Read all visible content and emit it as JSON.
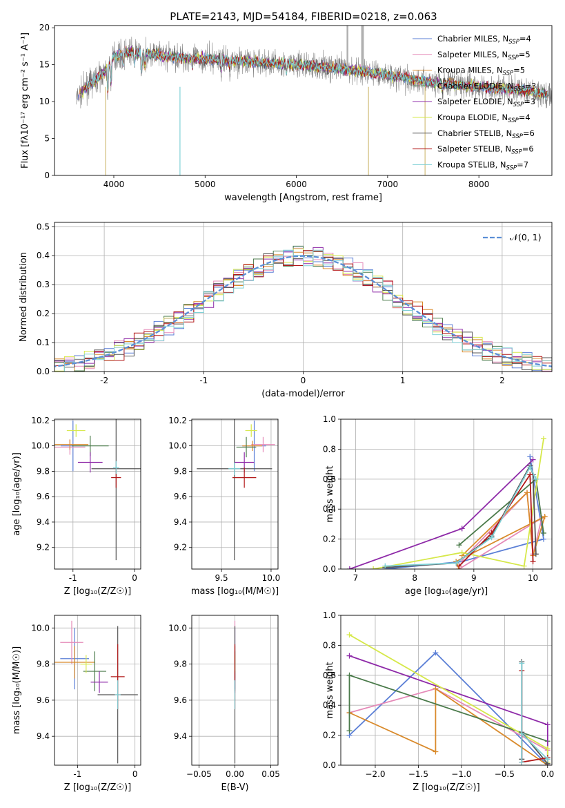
{
  "title": "PLATE=2143, MJD=54184, FIBERID=0218, z=0.063",
  "colors": {
    "chabrier_miles": "#5b7fd6",
    "salpeter_miles": "#e58ab8",
    "kroupa_miles": "#d98a2b",
    "chabrier_elodie": "#4a7a4a",
    "salpeter_elodie": "#8e2aa8",
    "kroupa_elodie": "#d6e84a",
    "chabrier_stelib": "#555555",
    "salpeter_stelib": "#b21818",
    "kroupa_stelib": "#7fd0d6",
    "data": "#808080",
    "masked": "#b0b0b0"
  },
  "chart_data": [
    {
      "type": "line",
      "name": "spectrum",
      "xlabel": "wavelength [Angstrom, rest frame]",
      "ylabel": "Flux [fλ10⁻¹⁷ erg cm⁻² s⁻¹ A⁻¹]",
      "xlim": [
        3350,
        8800
      ],
      "ylim": [
        0,
        20.3
      ],
      "xticks": [
        4000,
        5000,
        6000,
        7000,
        8000
      ],
      "yticks": [
        0,
        5,
        10,
        15,
        20
      ],
      "legend_position": "top-right",
      "legend": [
        {
          "label": "Chabrier MILES, N",
          "sub": "SSP",
          "tail": "=4",
          "color_key": "chabrier_miles"
        },
        {
          "label": "Salpeter MILES, N",
          "sub": "SSP",
          "tail": "=5",
          "color_key": "salpeter_miles"
        },
        {
          "label": "Kroupa MILES, N",
          "sub": "SSP",
          "tail": "=5",
          "color_key": "kroupa_miles"
        },
        {
          "label": "Chabrier ELODIE, N",
          "sub": "SSP",
          "tail": "=3",
          "color_key": "chabrier_elodie"
        },
        {
          "label": "Salpeter ELODIE, N",
          "sub": "SSP",
          "tail": "=3",
          "color_key": "salpeter_elodie"
        },
        {
          "label": "Kroupa ELODIE, N",
          "sub": "SSP",
          "tail": "=4",
          "color_key": "kroupa_elodie"
        },
        {
          "label": "Chabrier STELIB, N",
          "sub": "SSP",
          "tail": "=6",
          "color_key": "chabrier_stelib"
        },
        {
          "label": "Salpeter STELIB, N",
          "sub": "SSP",
          "tail": "=6",
          "color_key": "salpeter_stelib"
        },
        {
          "label": "Kroupa STELIB, N",
          "sub": "SSP",
          "tail": "=7",
          "color_key": "kroupa_stelib"
        }
      ],
      "continuum": {
        "x": [
          3600,
          3700,
          3800,
          3900,
          4000,
          4100,
          4200,
          4300,
          4400,
          4500,
          4700,
          5000,
          5500,
          6000,
          6500,
          7000,
          7500,
          8000,
          8500,
          8800
        ],
        "y": [
          10.5,
          12.0,
          13.0,
          14.0,
          16.2,
          16.5,
          16.8,
          16.5,
          16.5,
          16.3,
          16.0,
          15.8,
          15.4,
          15.0,
          14.5,
          13.6,
          12.6,
          12.0,
          11.5,
          10.8
        ]
      },
      "data_x_range": [
        3590,
        8800
      ],
      "spike_x": [
        3910,
        6790,
        7410
      ],
      "spike_x_cyan": [
        4725
      ],
      "masked_x": [
        6560,
        6720,
        6730
      ]
    },
    {
      "type": "bar",
      "name": "residual_histogram",
      "xlabel": "(data-model)/error",
      "ylabel": "Normed distribution",
      "xlim": [
        -2.5,
        2.5
      ],
      "ylim": [
        0,
        0.515
      ],
      "xticks": [
        -2,
        -1,
        0,
        1,
        2
      ],
      "yticks": [
        0.0,
        0.1,
        0.2,
        0.3,
        0.4,
        0.5
      ],
      "bin_width": 0.1,
      "legend": "𝒩(0, 1)",
      "legend_position": "top-right",
      "gaussian": {
        "mean": 0,
        "sigma": 1
      }
    },
    {
      "type": "scatter",
      "name": "age_vs_Z",
      "xlabel": "Z [log₁₀(Z/Z☉)]",
      "ylabel": "age  [log₁₀(age/yr)]",
      "xlim": [
        -1.3,
        0.1
      ],
      "ylim": [
        9.03,
        10.21
      ],
      "xticks": [
        -1,
        0
      ],
      "yticks": [
        9.2,
        9.4,
        9.6,
        9.8,
        10.0,
        10.2
      ],
      "points": [
        {
          "x": -1.0,
          "y": 10.0,
          "ex": 0.2,
          "ey": 0.2,
          "c": "chabrier_miles"
        },
        {
          "x": -1.05,
          "y": 9.99,
          "ex": 0.25,
          "ey": 0.06,
          "c": "salpeter_miles"
        },
        {
          "x": -1.05,
          "y": 10.01,
          "ex": 0.3,
          "ey": 0.04,
          "c": "kroupa_miles"
        },
        {
          "x": -0.72,
          "y": 10.0,
          "ex": 0.3,
          "ey": 0.08,
          "c": "chabrier_elodie"
        },
        {
          "x": -0.72,
          "y": 9.87,
          "ex": 0.2,
          "ey": 0.08,
          "c": "salpeter_elodie"
        },
        {
          "x": -0.95,
          "y": 10.12,
          "ex": 0.15,
          "ey": 0.05,
          "c": "kroupa_elodie"
        },
        {
          "x": -0.3,
          "y": 9.82,
          "ex": 0.4,
          "ey": 0.72,
          "c": "chabrier_stelib"
        },
        {
          "x": -0.3,
          "y": 9.75,
          "ex": 0.08,
          "ey": 0.08,
          "c": "salpeter_stelib"
        },
        {
          "x": -0.3,
          "y": 9.83,
          "ex": 0.05,
          "ey": 0.05,
          "c": "kroupa_stelib"
        }
      ]
    },
    {
      "type": "scatter",
      "name": "age_vs_mass",
      "xlabel": "mass [log₁₀(M/M☉)]",
      "ylabel": "",
      "xlim": [
        9.2,
        10.07
      ],
      "ylim": [
        9.03,
        10.21
      ],
      "xticks": [
        9.5,
        10.0
      ],
      "yticks": [
        9.2,
        9.4,
        9.6,
        9.8,
        10.0,
        10.2
      ],
      "points": [
        {
          "x": 9.83,
          "y": 10.0,
          "ex": 0.12,
          "ey": 0.2,
          "c": "chabrier_miles"
        },
        {
          "x": 9.92,
          "y": 10.01,
          "ex": 0.12,
          "ey": 0.06,
          "c": "salpeter_miles"
        },
        {
          "x": 9.81,
          "y": 10.0,
          "ex": 0.1,
          "ey": 0.04,
          "c": "kroupa_miles"
        },
        {
          "x": 9.75,
          "y": 9.99,
          "ex": 0.1,
          "ey": 0.08,
          "c": "chabrier_elodie"
        },
        {
          "x": 9.73,
          "y": 9.87,
          "ex": 0.1,
          "ey": 0.08,
          "c": "salpeter_elodie"
        },
        {
          "x": 9.8,
          "y": 10.12,
          "ex": 0.06,
          "ey": 0.05,
          "c": "kroupa_elodie"
        },
        {
          "x": 9.63,
          "y": 9.82,
          "ex": 0.38,
          "ey": 0.72,
          "c": "chabrier_stelib"
        },
        {
          "x": 9.73,
          "y": 9.75,
          "ex": 0.12,
          "ey": 0.08,
          "c": "salpeter_stelib"
        },
        {
          "x": 9.63,
          "y": 9.82,
          "ex": 0.06,
          "ey": 0.05,
          "c": "kroupa_stelib"
        }
      ]
    },
    {
      "type": "line",
      "name": "mass_weight_vs_age",
      "xlabel": "age  [log₁₀(age/yr)]",
      "ylabel": "mass weight",
      "xlim": [
        6.75,
        10.32
      ],
      "ylim": [
        0,
        1.0
      ],
      "xticks": [
        7,
        8,
        9,
        10
      ],
      "yticks": [
        0.0,
        0.2,
        0.4,
        0.6,
        0.8,
        1.0
      ],
      "series": [
        {
          "c": "chabrier_miles",
          "x": [
            9.95,
            10.18,
            8.8,
            7.5
          ],
          "y": [
            0.75,
            0.2,
            0.05,
            0.0
          ]
        },
        {
          "c": "salpeter_miles",
          "x": [
            8.8,
            9.9,
            10.0,
            10.15,
            8.75
          ],
          "y": [
            0.06,
            0.51,
            0.1,
            0.34,
            0.0
          ]
        },
        {
          "c": "kroupa_miles",
          "x": [
            8.8,
            9.9,
            10.0,
            10.2,
            8.7,
            8.75
          ],
          "y": [
            0.09,
            0.51,
            0.09,
            0.35,
            0.05,
            0.0
          ]
        },
        {
          "c": "chabrier_elodie",
          "x": [
            8.75,
            10.05,
            10.18
          ],
          "y": [
            0.16,
            0.6,
            0.24
          ]
        },
        {
          "c": "salpeter_elodie",
          "x": [
            6.9,
            8.8,
            10.0
          ],
          "y": [
            0.0,
            0.27,
            0.73
          ]
        },
        {
          "c": "kroupa_elodie",
          "x": [
            7.3,
            8.8,
            9.85,
            10.18
          ],
          "y": [
            0.0,
            0.11,
            0.02,
            0.87
          ]
        },
        {
          "c": "chabrier_stelib",
          "x": [
            7.5,
            8.7,
            9.3,
            9.95,
            10.0,
            10.05
          ],
          "y": [
            0.01,
            0.04,
            0.22,
            0.69,
            0.63,
            0.1
          ]
        },
        {
          "c": "salpeter_stelib",
          "x": [
            8.75,
            9.3,
            9.95,
            10.0
          ],
          "y": [
            0.02,
            0.24,
            0.63,
            0.05
          ]
        },
        {
          "c": "kroupa_stelib",
          "x": [
            7.5,
            8.7,
            9.3,
            9.95,
            10.05
          ],
          "y": [
            0.02,
            0.04,
            0.21,
            0.68,
            0.6
          ]
        }
      ]
    },
    {
      "type": "scatter",
      "name": "mass_vs_Z",
      "xlabel": "Z [log₁₀(Z/Z☉)]",
      "ylabel": "mass [log₁₀(M/M☉)]",
      "xlim": [
        -1.4,
        0.1
      ],
      "ylim": [
        9.24,
        10.07
      ],
      "xticks": [
        -1,
        0
      ],
      "yticks": [
        9.4,
        9.6,
        9.8,
        10.0
      ],
      "points": [
        {
          "x": -1.05,
          "y": 9.83,
          "ex": 0.25,
          "ey": 0.17,
          "c": "chabrier_miles"
        },
        {
          "x": -1.1,
          "y": 9.92,
          "ex": 0.2,
          "ey": 0.12,
          "c": "salpeter_miles"
        },
        {
          "x": -1.05,
          "y": 9.81,
          "ex": 0.35,
          "ey": 0.09,
          "c": "kroupa_miles"
        },
        {
          "x": -0.7,
          "y": 9.76,
          "ex": 0.2,
          "ey": 0.11,
          "c": "chabrier_elodie"
        },
        {
          "x": -0.62,
          "y": 9.7,
          "ex": 0.15,
          "ey": 0.06,
          "c": "salpeter_elodie"
        },
        {
          "x": -0.85,
          "y": 9.8,
          "ex": 0.1,
          "ey": 0.05,
          "c": "kroupa_elodie"
        },
        {
          "x": -0.3,
          "y": 9.63,
          "ex": 0.35,
          "ey": 0.38,
          "c": "chabrier_stelib"
        },
        {
          "x": -0.3,
          "y": 9.73,
          "ex": 0.12,
          "ey": 0.18,
          "c": "salpeter_stelib"
        },
        {
          "x": -0.3,
          "y": 9.63,
          "ex": 0.05,
          "ey": 0.08,
          "c": "kroupa_stelib"
        }
      ]
    },
    {
      "type": "scatter",
      "name": "mass_vs_ebv",
      "xlabel": "E(B-V)",
      "ylabel": "",
      "xlim": [
        -0.06,
        0.06
      ],
      "ylim": [
        9.24,
        10.07
      ],
      "xticks": [
        -0.05,
        0.0,
        0.05
      ],
      "yticks": [
        9.4,
        9.6,
        9.8,
        10.0
      ],
      "points": [
        {
          "x": 0.0,
          "y": 9.83,
          "ex": 0.0,
          "ey": 0.17,
          "c": "chabrier_miles"
        },
        {
          "x": 0.0,
          "y": 9.92,
          "ex": 0.0,
          "ey": 0.12,
          "c": "salpeter_miles"
        },
        {
          "x": 0.0,
          "y": 9.81,
          "ex": 0.0,
          "ey": 0.09,
          "c": "kroupa_miles"
        },
        {
          "x": 0.0,
          "y": 9.76,
          "ex": 0.0,
          "ey": 0.11,
          "c": "chabrier_elodie"
        },
        {
          "x": 0.0,
          "y": 9.7,
          "ex": 0.0,
          "ey": 0.06,
          "c": "salpeter_elodie"
        },
        {
          "x": 0.0,
          "y": 9.8,
          "ex": 0.0,
          "ey": 0.05,
          "c": "kroupa_elodie"
        },
        {
          "x": 0.0,
          "y": 9.63,
          "ex": 0.0,
          "ey": 0.38,
          "c": "chabrier_stelib"
        },
        {
          "x": 0.0,
          "y": 9.73,
          "ex": 0.0,
          "ey": 0.18,
          "c": "salpeter_stelib"
        },
        {
          "x": 0.0,
          "y": 9.63,
          "ex": 0.0,
          "ey": 0.08,
          "c": "kroupa_stelib"
        }
      ]
    },
    {
      "type": "line",
      "name": "mass_weight_vs_Z",
      "xlabel": "Z [log₁₀(Z/Z☉)]",
      "ylabel": "mass weight",
      "xlim": [
        -2.4,
        0.05
      ],
      "ylim": [
        0,
        1.0
      ],
      "xticks": [
        -2.0,
        -1.5,
        -1.0,
        -0.5,
        0.0
      ],
      "yticks": [
        0.0,
        0.2,
        0.4,
        0.6,
        0.8,
        1.0
      ],
      "series": [
        {
          "c": "chabrier_miles",
          "x": [
            -2.3,
            -1.3,
            0.0
          ],
          "y": [
            0.2,
            0.75,
            0.0
          ]
        },
        {
          "c": "salpeter_miles",
          "x": [
            -2.3,
            -1.3,
            0.0
          ],
          "y": [
            0.35,
            0.51,
            0.1
          ]
        },
        {
          "c": "kroupa_miles",
          "x": [
            -2.3,
            -1.3,
            -1.3,
            0.0
          ],
          "y": [
            0.35,
            0.09,
            0.51,
            0.0
          ]
        },
        {
          "c": "chabrier_elodie",
          "x": [
            -2.3,
            -2.3,
            0.0
          ],
          "y": [
            0.23,
            0.6,
            0.16
          ]
        },
        {
          "c": "salpeter_elodie",
          "x": [
            -2.3,
            0.0,
            0.0
          ],
          "y": [
            0.73,
            0.27,
            0.0
          ]
        },
        {
          "c": "kroupa_elodie",
          "x": [
            -2.3,
            0.0,
            0.0
          ],
          "y": [
            0.87,
            0.11,
            0.02
          ]
        },
        {
          "c": "chabrier_stelib",
          "x": [
            -0.3,
            -0.3,
            -0.3,
            0.0
          ],
          "y": [
            0.69,
            0.04,
            0.22,
            0.01
          ]
        },
        {
          "c": "salpeter_stelib",
          "x": [
            -0.3,
            -0.3,
            0.0
          ],
          "y": [
            0.63,
            0.02,
            0.05
          ]
        },
        {
          "c": "kroupa_stelib",
          "x": [
            -0.3,
            -0.3,
            -0.3,
            0.0
          ],
          "y": [
            0.68,
            0.02,
            0.21,
            0.04
          ]
        }
      ]
    }
  ]
}
